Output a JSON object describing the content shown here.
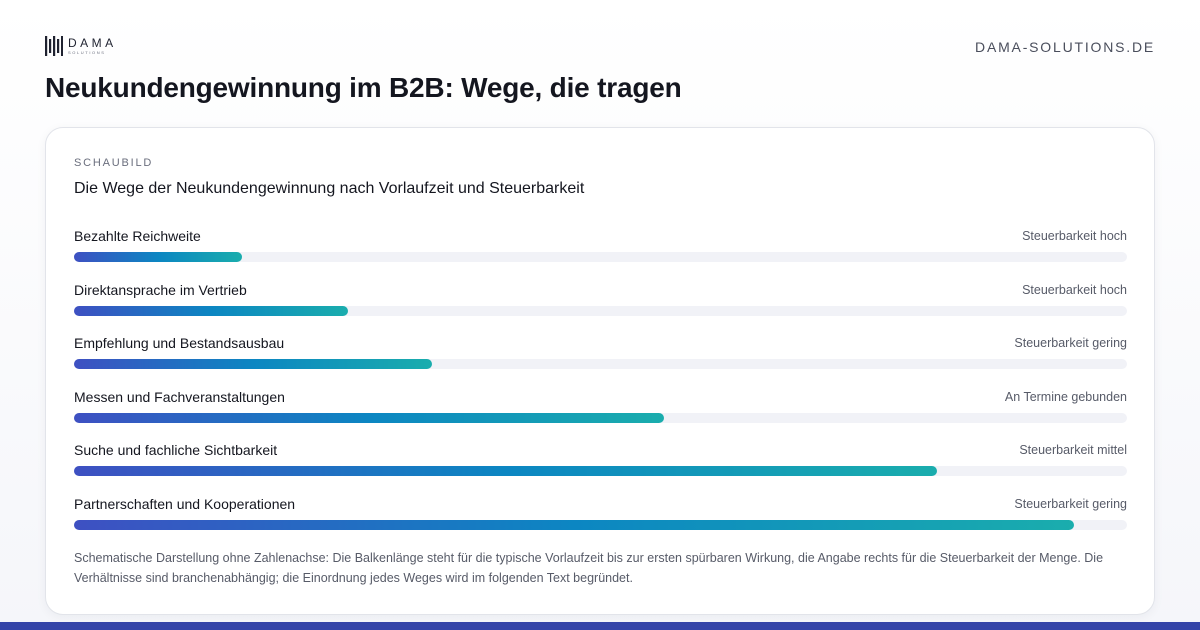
{
  "brand": {
    "name": "DAMA",
    "sub": "SOLUTIONS",
    "site": "DAMA-SOLUTIONS.DE"
  },
  "headline": "Neukundengewinnung im B2B: Wege, die tragen",
  "card": {
    "kicker": "SCHAUBILD",
    "subtitle": "Die Wege der Neukundengewinnung nach Vorlaufzeit und Steuerbarkeit",
    "note": "Schematische Darstellung ohne Zahlenachse: Die Balkenlänge steht für die typische Vorlaufzeit bis zur ersten spürbaren Wirkung, die Angabe rechts für die Steuerbarkeit der Menge. Die Verhältnisse sind branchenabhängig; die Einordnung jedes Weges wird im folgenden Text begründet."
  },
  "colors": {
    "gradient_start": "#3e50c2",
    "gradient_mid": "#0c86c2",
    "gradient_end": "#1aadad",
    "track": "#f1f2f7",
    "bottom_bar": "#3444a8"
  },
  "chart_data": {
    "type": "bar",
    "orientation": "horizontal",
    "axis": "none",
    "categories": [
      "Bezahlte Reichweite",
      "Direktansprache im Vertrieb",
      "Empfehlung und Bestandsausbau",
      "Messen und Fachveranstaltungen",
      "Suche und fachliche Sichtbarkeit",
      "Partnerschaften und Kooperationen"
    ],
    "values": [
      0.16,
      0.26,
      0.34,
      0.56,
      0.82,
      0.95
    ],
    "tags": [
      "Steuerbarkeit hoch",
      "Steuerbarkeit hoch",
      "Steuerbarkeit gering",
      "An Termine gebunden",
      "Steuerbarkeit mittel",
      "Steuerbarkeit gering"
    ],
    "xlim": [
      0,
      1
    ]
  }
}
